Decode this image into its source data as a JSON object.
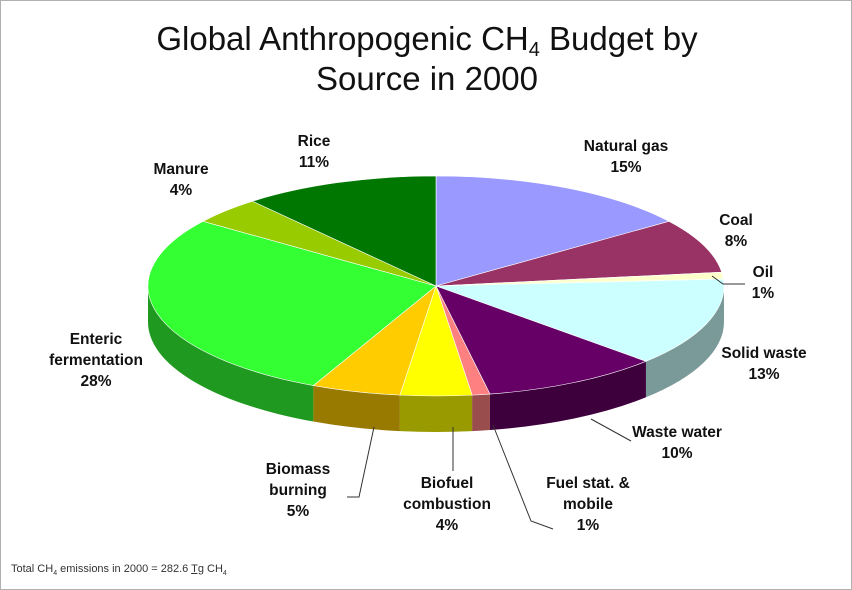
{
  "chart_data": {
    "type": "pie",
    "title": {
      "pre": "Global Anthropogenic CH",
      "sub": "4",
      "post": " Budget by",
      "line2": "Source in 2000"
    },
    "slices": [
      {
        "label_lines": [
          "Natural gas"
        ],
        "pct_text": "15%",
        "value": 15,
        "color": "#9999ff"
      },
      {
        "label_lines": [
          "Coal"
        ],
        "pct_text": "8%",
        "value": 8,
        "color": "#993366"
      },
      {
        "label_lines": [
          "Oil"
        ],
        "pct_text": "1%",
        "value": 1,
        "color": "#ffffcc"
      },
      {
        "label_lines": [
          "Solid waste"
        ],
        "pct_text": "13%",
        "value": 13,
        "color": "#ccffff"
      },
      {
        "label_lines": [
          "Waste water"
        ],
        "pct_text": "10%",
        "value": 10,
        "color": "#660066"
      },
      {
        "label_lines": [
          "Fuel stat. &",
          "mobile"
        ],
        "pct_text": "1%",
        "value": 1,
        "color": "#ff8080"
      },
      {
        "label_lines": [
          "Biofuel",
          "combustion"
        ],
        "pct_text": "4%",
        "value": 4,
        "color": "#ffff00"
      },
      {
        "label_lines": [
          "Biomass",
          "burning"
        ],
        "pct_text": "5%",
        "value": 5,
        "color": "#ffcc00"
      },
      {
        "label_lines": [
          "Enteric",
          "fermentation"
        ],
        "pct_text": "28%",
        "value": 28,
        "color": "#33ff33"
      },
      {
        "label_lines": [
          "Manure"
        ],
        "pct_text": "4%",
        "value": 4,
        "color": "#99cc00"
      },
      {
        "label_lines": [
          "Rice"
        ],
        "pct_text": "11%",
        "value": 11,
        "color": "#007700"
      }
    ]
  },
  "footnote": {
    "pre": "Total CH",
    "sub1": "4",
    "mid": " emissions in 2000 = 282.6 ",
    "unit": "Tg",
    "mid2": " CH",
    "sub2": "4"
  }
}
